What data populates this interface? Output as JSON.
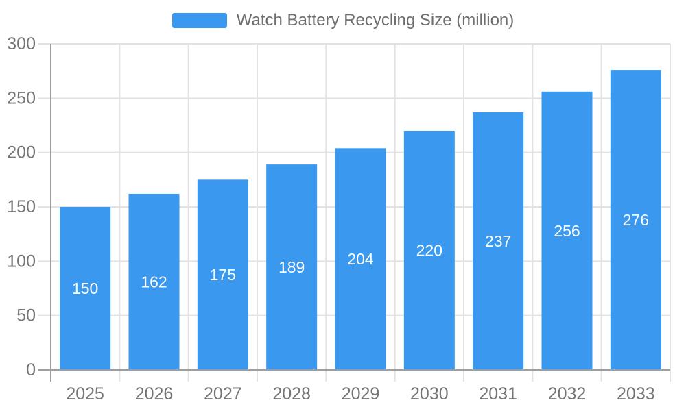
{
  "legend": {
    "label": "Watch Battery Recycling Size (million)"
  },
  "chart_data": {
    "type": "bar",
    "title": "Watch Battery Recycling Size (million)",
    "series_name": "Watch Battery Recycling Size (million)",
    "categories": [
      "2025",
      "2026",
      "2027",
      "2028",
      "2029",
      "2030",
      "2031",
      "2032",
      "2033"
    ],
    "values": [
      150,
      162,
      175,
      189,
      204,
      220,
      237,
      256,
      276
    ],
    "xlabel": "",
    "ylabel": "",
    "ylim": [
      0,
      300
    ],
    "yticks": [
      0,
      50,
      100,
      150,
      200,
      250,
      300
    ],
    "grid": true,
    "legend_position": "top-center",
    "bar_labels_inside": true,
    "colors": {
      "bar": "#3A99EE",
      "bar_label": "#FFFFFF",
      "axis_line": "#9E9E9E",
      "grid_line": "#E2E2E2",
      "tick_label": "#757575",
      "legend_text": "#6E6E6E",
      "background": "#FFFFFF"
    }
  }
}
